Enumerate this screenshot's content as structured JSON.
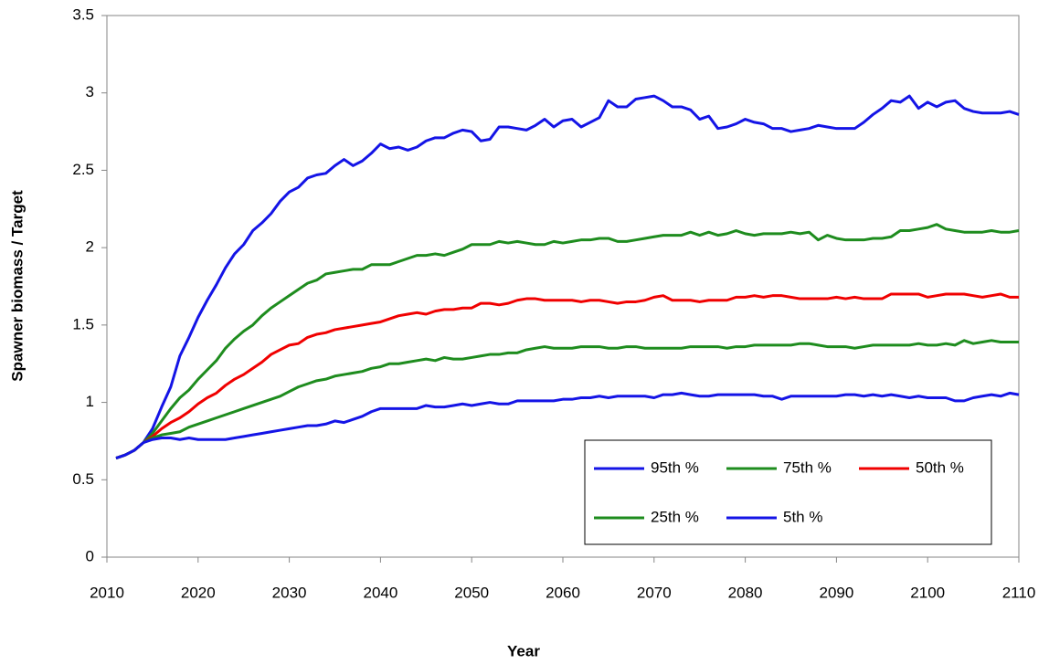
{
  "chart_data": {
    "type": "line",
    "x_label": "Year",
    "y_label": "Spawner biomass / Target",
    "x": [
      2011,
      2012,
      2013,
      2014,
      2015,
      2016,
      2017,
      2018,
      2019,
      2020,
      2021,
      2022,
      2023,
      2024,
      2025,
      2026,
      2027,
      2028,
      2029,
      2030,
      2031,
      2032,
      2033,
      2034,
      2035,
      2036,
      2037,
      2038,
      2039,
      2040,
      2041,
      2042,
      2043,
      2044,
      2045,
      2046,
      2047,
      2048,
      2049,
      2050,
      2051,
      2052,
      2053,
      2054,
      2055,
      2056,
      2057,
      2058,
      2059,
      2060,
      2061,
      2062,
      2063,
      2064,
      2065,
      2066,
      2067,
      2068,
      2069,
      2070,
      2071,
      2072,
      2073,
      2074,
      2075,
      2076,
      2077,
      2078,
      2079,
      2080,
      2081,
      2082,
      2083,
      2084,
      2085,
      2086,
      2087,
      2088,
      2089,
      2090,
      2091,
      2092,
      2093,
      2094,
      2095,
      2096,
      2097,
      2098,
      2099,
      2100,
      2101,
      2102,
      2103,
      2104,
      2105,
      2106,
      2107,
      2108,
      2109,
      2110
    ],
    "series": [
      {
        "name": "95th %",
        "color": "#1414e6",
        "values": [
          0.64,
          0.66,
          0.69,
          0.74,
          0.83,
          0.97,
          1.1,
          1.3,
          1.42,
          1.55,
          1.66,
          1.76,
          1.87,
          1.96,
          2.02,
          2.11,
          2.16,
          2.22,
          2.3,
          2.36,
          2.39,
          2.45,
          2.47,
          2.48,
          2.53,
          2.57,
          2.53,
          2.56,
          2.61,
          2.67,
          2.64,
          2.65,
          2.63,
          2.65,
          2.69,
          2.71,
          2.71,
          2.74,
          2.76,
          2.75,
          2.69,
          2.7,
          2.78,
          2.78,
          2.77,
          2.76,
          2.79,
          2.83,
          2.78,
          2.82,
          2.83,
          2.78,
          2.81,
          2.84,
          2.95,
          2.91,
          2.91,
          2.96,
          2.97,
          2.98,
          2.95,
          2.91,
          2.91,
          2.89,
          2.83,
          2.85,
          2.77,
          2.78,
          2.8,
          2.83,
          2.81,
          2.8,
          2.77,
          2.77,
          2.75,
          2.76,
          2.77,
          2.79,
          2.78,
          2.77,
          2.77,
          2.77,
          2.81,
          2.86,
          2.9,
          2.95,
          2.94,
          2.98,
          2.9,
          2.94,
          2.91,
          2.94,
          2.95,
          2.9,
          2.88,
          2.87,
          2.87,
          2.87,
          2.88,
          2.86
        ]
      },
      {
        "name": "75th %",
        "color": "#1e8c1e",
        "values": [
          0.64,
          0.66,
          0.69,
          0.74,
          0.8,
          0.88,
          0.96,
          1.03,
          1.08,
          1.15,
          1.21,
          1.27,
          1.35,
          1.41,
          1.46,
          1.5,
          1.56,
          1.61,
          1.65,
          1.69,
          1.73,
          1.77,
          1.79,
          1.83,
          1.84,
          1.85,
          1.86,
          1.86,
          1.89,
          1.89,
          1.89,
          1.91,
          1.93,
          1.95,
          1.95,
          1.96,
          1.95,
          1.97,
          1.99,
          2.02,
          2.02,
          2.02,
          2.04,
          2.03,
          2.04,
          2.03,
          2.02,
          2.02,
          2.04,
          2.03,
          2.04,
          2.05,
          2.05,
          2.06,
          2.06,
          2.04,
          2.04,
          2.05,
          2.06,
          2.07,
          2.08,
          2.08,
          2.08,
          2.1,
          2.08,
          2.1,
          2.08,
          2.09,
          2.11,
          2.09,
          2.08,
          2.09,
          2.09,
          2.09,
          2.1,
          2.09,
          2.1,
          2.05,
          2.08,
          2.06,
          2.05,
          2.05,
          2.05,
          2.06,
          2.06,
          2.07,
          2.11,
          2.11,
          2.12,
          2.13,
          2.15,
          2.12,
          2.11,
          2.1,
          2.1,
          2.1,
          2.11,
          2.1,
          2.1,
          2.11
        ]
      },
      {
        "name": "50th %",
        "color": "#f00000",
        "values": [
          0.64,
          0.66,
          0.69,
          0.74,
          0.78,
          0.83,
          0.87,
          0.9,
          0.94,
          0.99,
          1.03,
          1.06,
          1.11,
          1.15,
          1.18,
          1.22,
          1.26,
          1.31,
          1.34,
          1.37,
          1.38,
          1.42,
          1.44,
          1.45,
          1.47,
          1.48,
          1.49,
          1.5,
          1.51,
          1.52,
          1.54,
          1.56,
          1.57,
          1.58,
          1.57,
          1.59,
          1.6,
          1.6,
          1.61,
          1.61,
          1.64,
          1.64,
          1.63,
          1.64,
          1.66,
          1.67,
          1.67,
          1.66,
          1.66,
          1.66,
          1.66,
          1.65,
          1.66,
          1.66,
          1.65,
          1.64,
          1.65,
          1.65,
          1.66,
          1.68,
          1.69,
          1.66,
          1.66,
          1.66,
          1.65,
          1.66,
          1.66,
          1.66,
          1.68,
          1.68,
          1.69,
          1.68,
          1.69,
          1.69,
          1.68,
          1.67,
          1.67,
          1.67,
          1.67,
          1.68,
          1.67,
          1.68,
          1.67,
          1.67,
          1.67,
          1.7,
          1.7,
          1.7,
          1.7,
          1.68,
          1.69,
          1.7,
          1.7,
          1.7,
          1.69,
          1.68,
          1.69,
          1.7,
          1.68,
          1.68
        ]
      },
      {
        "name": "25th %",
        "color": "#1e8c1e",
        "values": [
          0.64,
          0.66,
          0.69,
          0.74,
          0.77,
          0.79,
          0.8,
          0.81,
          0.84,
          0.86,
          0.88,
          0.9,
          0.92,
          0.94,
          0.96,
          0.98,
          1.0,
          1.02,
          1.04,
          1.07,
          1.1,
          1.12,
          1.14,
          1.15,
          1.17,
          1.18,
          1.19,
          1.2,
          1.22,
          1.23,
          1.25,
          1.25,
          1.26,
          1.27,
          1.28,
          1.27,
          1.29,
          1.28,
          1.28,
          1.29,
          1.3,
          1.31,
          1.31,
          1.32,
          1.32,
          1.34,
          1.35,
          1.36,
          1.35,
          1.35,
          1.35,
          1.36,
          1.36,
          1.36,
          1.35,
          1.35,
          1.36,
          1.36,
          1.35,
          1.35,
          1.35,
          1.35,
          1.35,
          1.36,
          1.36,
          1.36,
          1.36,
          1.35,
          1.36,
          1.36,
          1.37,
          1.37,
          1.37,
          1.37,
          1.37,
          1.38,
          1.38,
          1.37,
          1.36,
          1.36,
          1.36,
          1.35,
          1.36,
          1.37,
          1.37,
          1.37,
          1.37,
          1.37,
          1.38,
          1.37,
          1.37,
          1.38,
          1.37,
          1.4,
          1.38,
          1.39,
          1.4,
          1.39,
          1.39,
          1.39
        ]
      },
      {
        "name": "5th %",
        "color": "#1414e6",
        "values": [
          0.64,
          0.66,
          0.69,
          0.74,
          0.76,
          0.77,
          0.77,
          0.76,
          0.77,
          0.76,
          0.76,
          0.76,
          0.76,
          0.77,
          0.78,
          0.79,
          0.8,
          0.81,
          0.82,
          0.83,
          0.84,
          0.85,
          0.85,
          0.86,
          0.88,
          0.87,
          0.89,
          0.91,
          0.94,
          0.96,
          0.96,
          0.96,
          0.96,
          0.96,
          0.98,
          0.97,
          0.97,
          0.98,
          0.99,
          0.98,
          0.99,
          1.0,
          0.99,
          0.99,
          1.01,
          1.01,
          1.01,
          1.01,
          1.01,
          1.02,
          1.02,
          1.03,
          1.03,
          1.04,
          1.03,
          1.04,
          1.04,
          1.04,
          1.04,
          1.03,
          1.05,
          1.05,
          1.06,
          1.05,
          1.04,
          1.04,
          1.05,
          1.05,
          1.05,
          1.05,
          1.05,
          1.04,
          1.04,
          1.02,
          1.04,
          1.04,
          1.04,
          1.04,
          1.04,
          1.04,
          1.05,
          1.05,
          1.04,
          1.05,
          1.04,
          1.05,
          1.04,
          1.03,
          1.04,
          1.03,
          1.03,
          1.03,
          1.01,
          1.01,
          1.03,
          1.04,
          1.05,
          1.04,
          1.06,
          1.05
        ]
      }
    ],
    "xlim": [
      2010,
      2110
    ],
    "xticks": [
      2010,
      2020,
      2030,
      2040,
      2050,
      2060,
      2070,
      2080,
      2090,
      2100,
      2110
    ],
    "ylim": [
      0,
      3.5
    ],
    "yticks": [
      0,
      0.5,
      1,
      1.5,
      2,
      2.5,
      3,
      3.5
    ],
    "legend": "lower right"
  }
}
